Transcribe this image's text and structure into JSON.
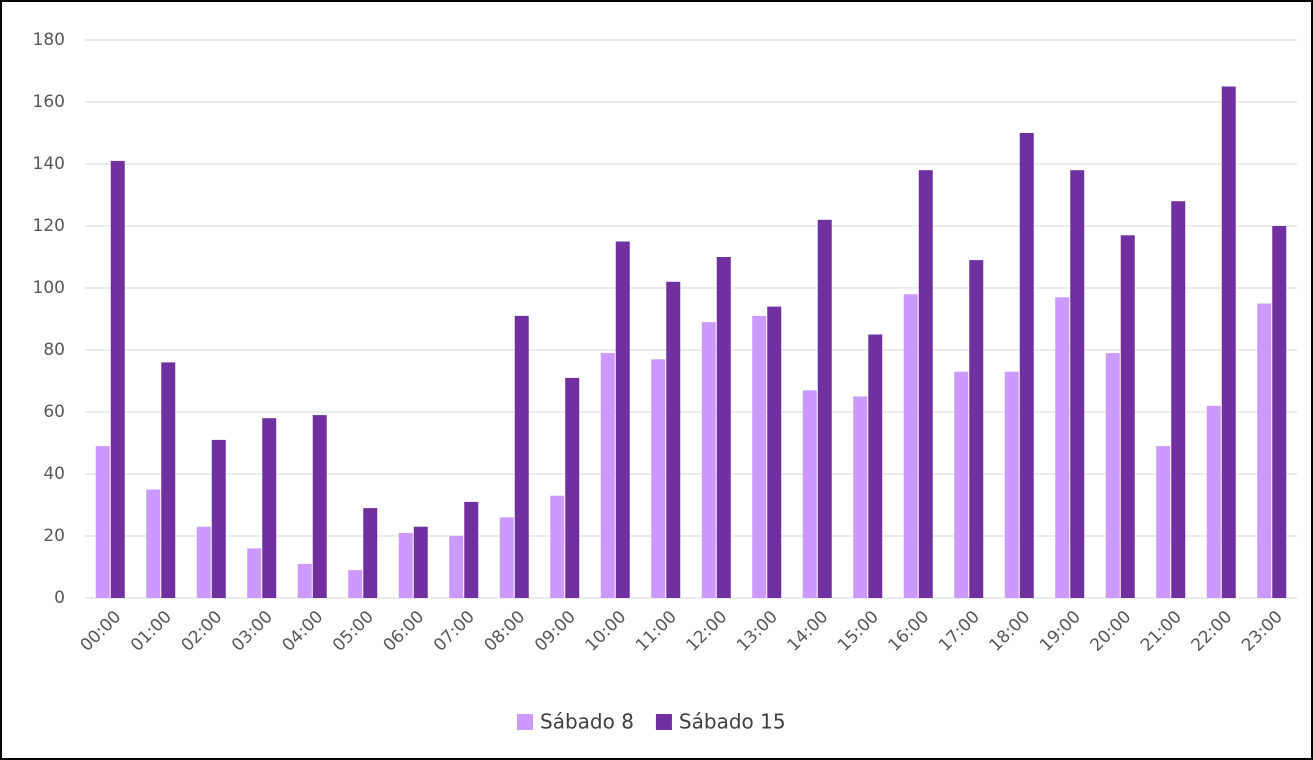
{
  "chart_data": {
    "type": "bar",
    "categories": [
      "00:00",
      "01:00",
      "02:00",
      "03:00",
      "04:00",
      "05:00",
      "06:00",
      "07:00",
      "08:00",
      "09:00",
      "10:00",
      "11:00",
      "12:00",
      "13:00",
      "14:00",
      "15:00",
      "16:00",
      "17:00",
      "18:00",
      "19:00",
      "20:00",
      "21:00",
      "22:00",
      "23:00"
    ],
    "series": [
      {
        "name": "Sábado 8",
        "color": "#cc99ff",
        "values": [
          49,
          35,
          23,
          16,
          11,
          9,
          21,
          20,
          26,
          33,
          79,
          77,
          89,
          91,
          67,
          65,
          98,
          73,
          73,
          97,
          79,
          49,
          62,
          95
        ]
      },
      {
        "name": "Sábado 15",
        "color": "#7030a0",
        "values": [
          141,
          76,
          51,
          58,
          59,
          29,
          23,
          31,
          91,
          71,
          115,
          102,
          110,
          94,
          122,
          85,
          138,
          109,
          150,
          138,
          117,
          128,
          165,
          120
        ]
      }
    ],
    "ylim": [
      0,
      180
    ],
    "yticks": [
      0,
      20,
      40,
      60,
      80,
      100,
      120,
      140,
      160,
      180
    ],
    "grid": true,
    "legend": "bottom"
  }
}
